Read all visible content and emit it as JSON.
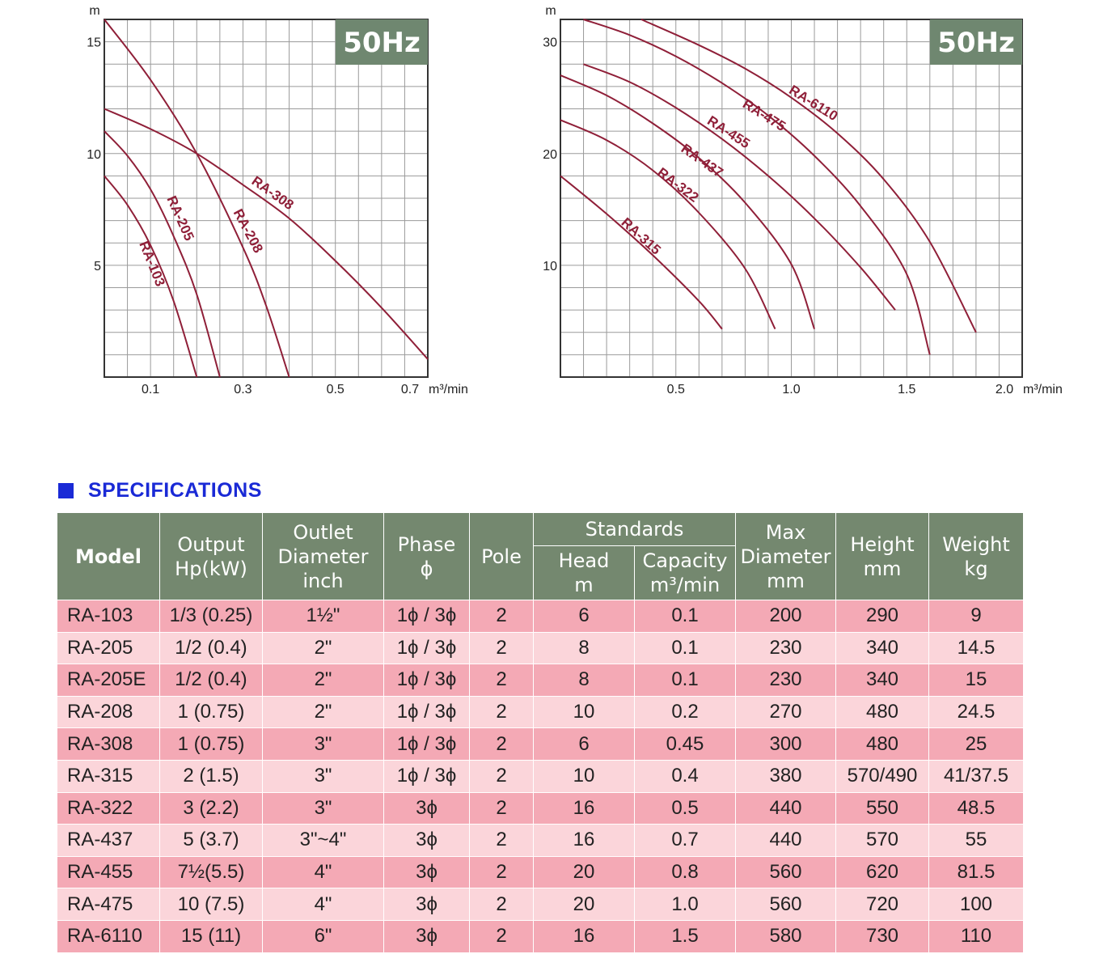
{
  "charts": {
    "left": {
      "badge": "50Hz",
      "y_unit": "m",
      "x_unit": "m³/min",
      "y_ticks": [
        "15",
        "10",
        "5"
      ],
      "x_ticks": [
        "0.1",
        "0.3",
        "0.5",
        "0.7"
      ]
    },
    "right": {
      "badge": "50Hz",
      "y_unit": "m",
      "x_unit": "m³/min",
      "y_ticks": [
        "30",
        "20",
        "10"
      ],
      "x_ticks": [
        "0.5",
        "1.0",
        "1.5",
        "2.0"
      ]
    }
  },
  "chart_data": [
    {
      "type": "line",
      "title": "50Hz",
      "ylabel": "m",
      "xlabel": "m³/min",
      "xlim": [
        0,
        0.7
      ],
      "ylim": [
        0,
        16
      ],
      "grid": true,
      "series": [
        {
          "name": "RA-103",
          "x": [
            0,
            0.05,
            0.1,
            0.15,
            0.2
          ],
          "y": [
            9,
            7.7,
            5.9,
            3.4,
            0
          ]
        },
        {
          "name": "RA-205",
          "x": [
            0,
            0.05,
            0.1,
            0.15,
            0.2,
            0.25
          ],
          "y": [
            11,
            9.9,
            8.4,
            6.3,
            3.7,
            0
          ]
        },
        {
          "name": "RA-208",
          "x": [
            0,
            0.1,
            0.2,
            0.3,
            0.35,
            0.4
          ],
          "y": [
            16,
            13.3,
            10,
            5.8,
            3.2,
            0
          ]
        },
        {
          "name": "RA-308",
          "x": [
            0,
            0.1,
            0.2,
            0.3,
            0.4,
            0.5,
            0.6,
            0.7
          ],
          "y": [
            12,
            11.1,
            10,
            8.6,
            7.1,
            5.2,
            3.1,
            0.8
          ]
        }
      ]
    },
    {
      "type": "line",
      "title": "50Hz",
      "ylabel": "m",
      "xlabel": "m³/min",
      "xlim": [
        0,
        2.0
      ],
      "ylim": [
        0,
        32
      ],
      "grid": true,
      "series": [
        {
          "name": "RA-315",
          "x": [
            0,
            0.2,
            0.4,
            0.6,
            0.7
          ],
          "y": [
            18,
            14.6,
            10.9,
            6.8,
            4.3
          ]
        },
        {
          "name": "RA-322",
          "x": [
            0,
            0.2,
            0.4,
            0.6,
            0.8,
            0.93
          ],
          "y": [
            23,
            21.2,
            18.5,
            14.7,
            9.7,
            4.3
          ]
        },
        {
          "name": "RA-437",
          "x": [
            0,
            0.2,
            0.4,
            0.6,
            0.8,
            1.0,
            1.1
          ],
          "y": [
            27,
            25.2,
            22.7,
            19.6,
            15.6,
            10.1,
            4.3
          ]
        },
        {
          "name": "RA-455",
          "x": [
            0.1,
            0.3,
            0.5,
            0.7,
            0.9,
            1.1,
            1.3,
            1.45
          ],
          "y": [
            28,
            26.4,
            24.1,
            21.3,
            18,
            14.2,
            9.8,
            6
          ]
        },
        {
          "name": "RA-475",
          "x": [
            0.1,
            0.3,
            0.5,
            0.7,
            0.9,
            1.1,
            1.3,
            1.5,
            1.6
          ],
          "y": [
            32,
            30.6,
            28.7,
            26.3,
            23.4,
            19.8,
            15.3,
            9.2,
            2
          ]
        },
        {
          "name": "RA-6110",
          "x": [
            0.35,
            0.6,
            0.8,
            1.0,
            1.2,
            1.4,
            1.6,
            1.8
          ],
          "y": [
            32,
            29.7,
            27.6,
            25,
            21.8,
            17.7,
            12.1,
            4
          ]
        }
      ]
    }
  ],
  "spec": {
    "title": "SPECIFICATIONS",
    "headers": {
      "model": "Model",
      "output": [
        "Output",
        "Hp(kW)"
      ],
      "outlet": [
        "Outlet",
        "Diameter",
        "inch"
      ],
      "phase": [
        "Phase",
        "ϕ"
      ],
      "pole": "Pole",
      "standards": "Standards",
      "head": [
        "Head",
        "m"
      ],
      "capacity": [
        "Capacity",
        "m³/min"
      ],
      "maxdia": [
        "Max",
        "Diameter",
        "mm"
      ],
      "height": [
        "Height",
        "mm"
      ],
      "weight": [
        "Weight",
        "kg"
      ]
    },
    "rows": [
      {
        "model": "RA-103",
        "output": "1/3 (0.25)",
        "outlet": "1½\"",
        "phase": "1ϕ / 3ϕ",
        "pole": "2",
        "head": "6",
        "capacity": "0.1",
        "maxdia": "200",
        "height": "290",
        "weight": "9"
      },
      {
        "model": "RA-205",
        "output": "1/2 (0.4)",
        "outlet": "2\"",
        "phase": "1ϕ / 3ϕ",
        "pole": "2",
        "head": "8",
        "capacity": "0.1",
        "maxdia": "230",
        "height": "340",
        "weight": "14.5"
      },
      {
        "model": "RA-205E",
        "output": "1/2 (0.4)",
        "outlet": "2\"",
        "phase": "1ϕ / 3ϕ",
        "pole": "2",
        "head": "8",
        "capacity": "0.1",
        "maxdia": "230",
        "height": "340",
        "weight": "15"
      },
      {
        "model": "RA-208",
        "output": "1 (0.75)",
        "outlet": "2\"",
        "phase": "1ϕ / 3ϕ",
        "pole": "2",
        "head": "10",
        "capacity": "0.2",
        "maxdia": "270",
        "height": "480",
        "weight": "24.5"
      },
      {
        "model": "RA-308",
        "output": "1 (0.75)",
        "outlet": "3\"",
        "phase": "1ϕ / 3ϕ",
        "pole": "2",
        "head": "6",
        "capacity": "0.45",
        "maxdia": "300",
        "height": "480",
        "weight": "25"
      },
      {
        "model": "RA-315",
        "output": "2 (1.5)",
        "outlet": "3\"",
        "phase": "1ϕ / 3ϕ",
        "pole": "2",
        "head": "10",
        "capacity": "0.4",
        "maxdia": "380",
        "height": "570/490",
        "weight": "41/37.5"
      },
      {
        "model": "RA-322",
        "output": "3 (2.2)",
        "outlet": "3\"",
        "phase": "3ϕ",
        "pole": "2",
        "head": "16",
        "capacity": "0.5",
        "maxdia": "440",
        "height": "550",
        "weight": "48.5"
      },
      {
        "model": "RA-437",
        "output": "5 (3.7)",
        "outlet": "3\"~4\"",
        "phase": "3ϕ",
        "pole": "2",
        "head": "16",
        "capacity": "0.7",
        "maxdia": "440",
        "height": "570",
        "weight": "55"
      },
      {
        "model": "RA-455",
        "output": "7½(5.5)",
        "outlet": "4\"",
        "phase": "3ϕ",
        "pole": "2",
        "head": "20",
        "capacity": "0.8",
        "maxdia": "560",
        "height": "620",
        "weight": "81.5"
      },
      {
        "model": "RA-475",
        "output": "10 (7.5)",
        "outlet": "4\"",
        "phase": "3ϕ",
        "pole": "2",
        "head": "20",
        "capacity": "1.0",
        "maxdia": "560",
        "height": "720",
        "weight": "100"
      },
      {
        "model": "RA-6110",
        "output": "15 (11)",
        "outlet": "6\"",
        "phase": "3ϕ",
        "pole": "2",
        "head": "16",
        "capacity": "1.5",
        "maxdia": "580",
        "height": "730",
        "weight": "110"
      }
    ]
  },
  "colors": {
    "curve": "#8f1f38",
    "badge_bg": "#6f8770",
    "header_bg": "#74886f",
    "row_dark": "#f4a9b5",
    "row_light": "#fbd5da",
    "title_blue": "#1a2ad6"
  }
}
